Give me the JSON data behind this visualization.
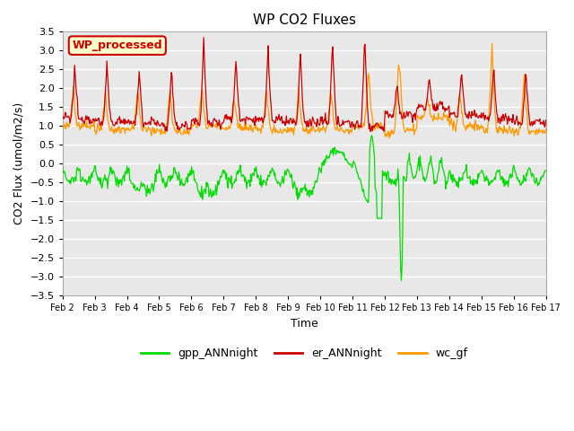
{
  "title": "WP CO2 Fluxes",
  "xlabel": "Time",
  "ylabel_text": "CO2 Flux (umol/m2/s)",
  "ylim": [
    -3.5,
    3.5
  ],
  "yticks": [
    -3.5,
    -3.0,
    -2.5,
    -2.0,
    -1.5,
    -1.0,
    -0.5,
    0.0,
    0.5,
    1.0,
    1.5,
    2.0,
    2.5,
    3.0,
    3.5
  ],
  "xtick_labels": [
    "Feb 2",
    "Feb 3",
    "Feb 4",
    "Feb 5",
    "Feb 6",
    "Feb 7",
    "Feb 8",
    "Feb 9",
    "Feb 10",
    "Feb 11",
    "Feb 12",
    "Feb 13",
    "Feb 14",
    "Feb 15",
    "Feb 16",
    "Feb 17"
  ],
  "n_days": 15,
  "bg_color": "#e8e8e8",
  "grid_color": "white",
  "line_colors": {
    "gpp": "#00dd00",
    "er": "#cc0000",
    "wc": "#ff9900"
  },
  "legend_box_label": "WP_processed",
  "legend_box_facecolor": "#ffffcc",
  "legend_box_edgecolor": "#cc0000",
  "series_labels": [
    "gpp_ANNnight",
    "er_ANNnight",
    "wc_gf"
  ]
}
